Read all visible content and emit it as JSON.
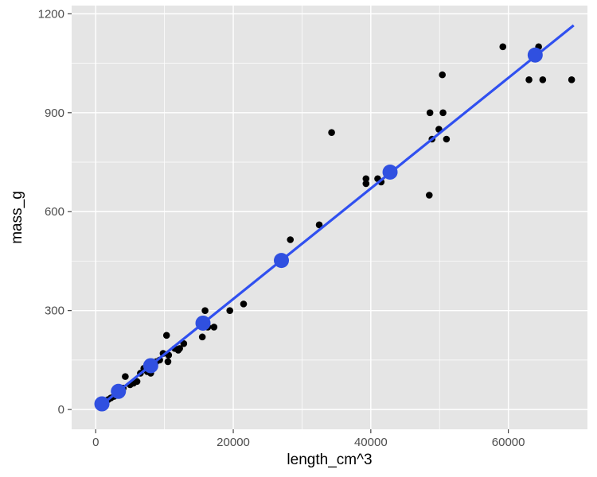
{
  "chart_data": {
    "type": "scatter",
    "xlabel": "length_cm^3",
    "ylabel": "mass_g",
    "xlim": [
      -3500,
      71500
    ],
    "ylim": [
      -60,
      1225
    ],
    "x_ticks": [
      0,
      20000,
      40000,
      60000
    ],
    "x_tick_labels": [
      "0",
      "20000",
      "40000",
      "60000"
    ],
    "y_ticks": [
      0,
      300,
      600,
      900,
      1200
    ],
    "y_tick_labels": [
      "0",
      "300",
      "600",
      "900",
      "1200"
    ],
    "grid": true,
    "colors": {
      "panel": "#e5e5e5",
      "grid": "#ffffff",
      "points": "#000000",
      "fit_line": "#3050f0",
      "fit_points": "#3050e0"
    },
    "series": [
      {
        "kind": "points",
        "x": [
          500,
          900,
          1100,
          1500,
          1800,
          2200,
          2700,
          3100,
          3500,
          4000,
          4300,
          5000,
          5500,
          6000,
          6500,
          7000,
          7500,
          8000,
          8300,
          8800,
          9300,
          9800,
          10300,
          10500,
          10600,
          11500,
          12000,
          12200,
          12800,
          15500,
          15900,
          16300,
          17200,
          19500,
          21500,
          28300,
          32500,
          34300,
          39300,
          39300,
          41000,
          41500,
          48500,
          48600,
          48900,
          49900,
          50400,
          50500,
          51000,
          59200,
          63000,
          64400,
          65000,
          69200
        ],
        "y": [
          10,
          20,
          15,
          25,
          30,
          35,
          40,
          45,
          55,
          65,
          100,
          75,
          80,
          85,
          110,
          125,
          115,
          110,
          135,
          145,
          150,
          170,
          225,
          145,
          165,
          185,
          180,
          185,
          200,
          220,
          300,
          250,
          250,
          300,
          320,
          515,
          560,
          840,
          685,
          700,
          700,
          690,
          650,
          900,
          820,
          850,
          1015,
          900,
          820,
          1100,
          1000,
          1100,
          1000,
          1000
        ]
      },
      {
        "kind": "fit_line",
        "x": [
          300,
          69500
        ],
        "y": [
          5,
          1165
        ]
      },
      {
        "kind": "fit_points",
        "x": [
          900,
          3300,
          8000,
          15600,
          27000,
          42800,
          63900
        ],
        "y": [
          17,
          55,
          133,
          262,
          452,
          720,
          1075
        ]
      }
    ]
  }
}
